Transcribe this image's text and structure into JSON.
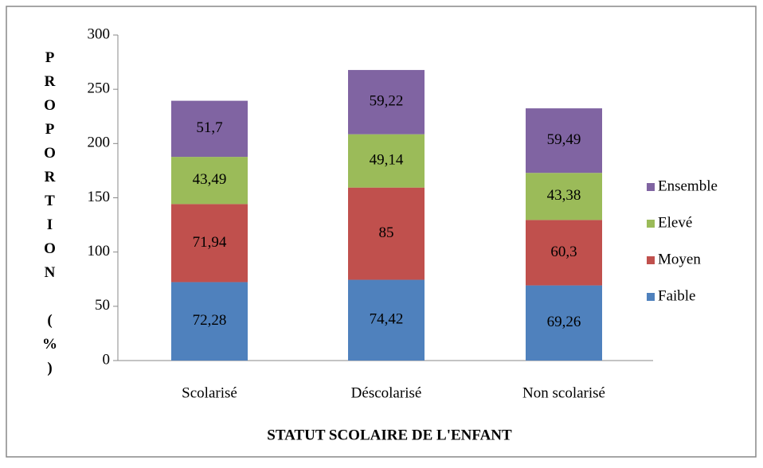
{
  "chart_data": {
    "type": "stacked_bar",
    "x_label": "STATUT SCOLAIRE DE L'ENFANT",
    "y_label": "PROPORTION (%)",
    "categories": [
      "Scolarisé",
      "Déscolarisé",
      "Non scolarisé"
    ],
    "series": [
      {
        "name": "Faible",
        "color": "#4f81bd",
        "values": [
          72.28,
          74.42,
          69.26
        ],
        "value_labels": [
          "72,28",
          "74,42",
          "69,26"
        ]
      },
      {
        "name": "Moyen",
        "color": "#c0504d",
        "values": [
          71.94,
          85,
          60.3
        ],
        "value_labels": [
          "71,94",
          "85",
          "60,3"
        ]
      },
      {
        "name": "Elevé",
        "color": "#9bbb59",
        "values": [
          43.49,
          49.14,
          43.38
        ],
        "value_labels": [
          "43,49",
          "49,14",
          "43,38"
        ]
      },
      {
        "name": "Ensemble",
        "color": "#8064a2",
        "values": [
          51.7,
          59.22,
          59.49
        ],
        "value_labels": [
          "51,7",
          "59,22",
          "59,49"
        ]
      }
    ],
    "ylim": [
      0,
      300
    ],
    "yticks": [
      0,
      50,
      100,
      150,
      200,
      250,
      300
    ],
    "legend": "right"
  }
}
